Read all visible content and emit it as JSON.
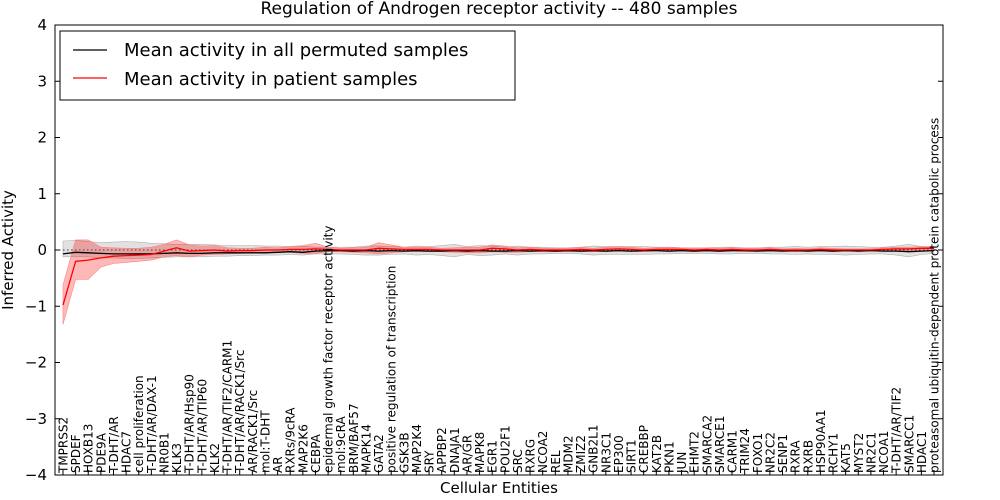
{
  "chart_data": {
    "type": "line",
    "title": "Regulation of Androgen receptor activity -- 480 samples",
    "xlabel": "Cellular Entities",
    "ylabel": "Inferred Activity",
    "ylim": [
      -4,
      4
    ],
    "yticks": [
      -4,
      -3,
      -2,
      -1,
      0,
      1,
      2,
      3,
      4
    ],
    "ytick_labels": [
      "−4",
      "−3",
      "−2",
      "−1",
      "0",
      "1",
      "2",
      "3",
      "4"
    ],
    "legend": {
      "position": "top-left",
      "entries": [
        {
          "label": "Mean activity in all permuted samples",
          "color": "#000000"
        },
        {
          "label": "Mean activity in patient samples",
          "color": "#ff0000"
        }
      ]
    },
    "categories": [
      "TMPRSS2",
      "SPDEF",
      "HOXB13",
      "PDE9A",
      "T-DHT/AR",
      "HDAC7",
      "cell proliferation",
      "T-DHT/AR/DAX-1",
      "NR0B1",
      "KLK3",
      "T-DHT/AR/Hsp90",
      "T-DHT/AR/TIP60",
      "KLK2",
      "T-DHT/AR/TIF2/CARM1",
      "T-DHT/AR/RACK1/Src",
      "AR/RACK1/Src",
      "mol:T-DHT",
      "AR",
      "RXRs/9cRA",
      "MAP2K6",
      "CEBPA",
      "epidermal growth factor receptor activity",
      "mol:9cRA",
      "BRM/BAF57",
      "MAPK14",
      "GATA2",
      "positive regulation of transcription",
      "GSK3B",
      "MAP2K4",
      "SRY",
      "APPBP2",
      "DNAJA1",
      "AR/GR",
      "MAPK8",
      "EGR1",
      "POU2F1",
      "SRC",
      "RXRG",
      "NCOA2",
      "REL",
      "MDM2",
      "ZMIZ2",
      "GNB2L1",
      "NR3C1",
      "EP300",
      "SIRT1",
      "CREBBP",
      "KAT2B",
      "PKN1",
      "JUN",
      "EHMT2",
      "SMARCA2",
      "SMARCE1",
      "CARM1",
      "TRIM24",
      "FOXO1",
      "NR2C2",
      "SENP1",
      "RXRA",
      "RXRB",
      "HSP90AA1",
      "RCHY1",
      "KAT5",
      "MYST2",
      "NR2C1",
      "NCOA1",
      "T-DHT/AR/TIF2",
      "SMARCC1",
      "HDAC1",
      "proteasomal ubiquitin-dependent protein catabolic process"
    ],
    "series": [
      {
        "name": "Mean activity in all permuted samples",
        "color": "#000000",
        "values": [
          -0.07,
          -0.04,
          -0.05,
          -0.06,
          -0.07,
          -0.07,
          -0.07,
          -0.07,
          -0.06,
          -0.05,
          -0.06,
          -0.06,
          -0.05,
          -0.05,
          -0.05,
          -0.05,
          -0.05,
          -0.04,
          -0.03,
          -0.04,
          -0.02,
          -0.01,
          -0.01,
          -0.02,
          -0.01,
          -0.02,
          -0.01,
          -0.02,
          -0.01,
          -0.02,
          -0.02,
          -0.01,
          -0.02,
          -0.01,
          -0.02,
          -0.02,
          -0.01,
          -0.02,
          -0.01,
          -0.02,
          -0.01,
          -0.02,
          -0.01,
          -0.02,
          -0.01,
          -0.02,
          -0.01,
          -0.01,
          -0.02,
          -0.01,
          -0.02,
          -0.01,
          -0.02,
          -0.01,
          -0.01,
          -0.02,
          -0.01,
          -0.02,
          -0.01,
          -0.02,
          -0.01,
          -0.02,
          -0.01,
          -0.02,
          -0.01,
          -0.02,
          -0.02,
          -0.03,
          -0.02,
          -0.01
        ],
        "band_low": [
          -0.12,
          -0.12,
          -0.12,
          -0.14,
          -0.14,
          -0.15,
          -0.15,
          -0.14,
          -0.13,
          -0.12,
          -0.12,
          -0.12,
          -0.11,
          -0.11,
          -0.1,
          -0.1,
          -0.09,
          -0.09,
          -0.08,
          -0.09,
          -0.07,
          -0.07,
          -0.07,
          -0.08,
          -0.09,
          -0.09,
          -0.08,
          -0.07,
          -0.09,
          -0.08,
          -0.1,
          -0.12,
          -0.08,
          -0.1,
          -0.09,
          -0.07,
          -0.09,
          -0.07,
          -0.07,
          -0.06,
          -0.06,
          -0.07,
          -0.09,
          -0.08,
          -0.08,
          -0.08,
          -0.08,
          -0.07,
          -0.07,
          -0.06,
          -0.06,
          -0.06,
          -0.07,
          -0.07,
          -0.06,
          -0.06,
          -0.07,
          -0.07,
          -0.08,
          -0.07,
          -0.08,
          -0.08,
          -0.09,
          -0.08,
          -0.07,
          -0.07,
          -0.09,
          -0.12,
          -0.08,
          -0.06
        ],
        "band_high": [
          0.16,
          0.17,
          0.15,
          0.13,
          0.14,
          0.15,
          0.14,
          0.12,
          0.11,
          0.1,
          0.1,
          0.1,
          0.09,
          0.08,
          0.08,
          0.08,
          0.07,
          0.07,
          0.06,
          0.07,
          0.05,
          0.05,
          0.05,
          0.05,
          0.07,
          0.07,
          0.06,
          0.05,
          0.07,
          0.06,
          0.08,
          0.1,
          0.06,
          0.08,
          0.07,
          0.05,
          0.07,
          0.05,
          0.05,
          0.04,
          0.04,
          0.05,
          0.07,
          0.06,
          0.06,
          0.06,
          0.06,
          0.05,
          0.05,
          0.04,
          0.04,
          0.04,
          0.05,
          0.05,
          0.04,
          0.04,
          0.05,
          0.05,
          0.06,
          0.05,
          0.06,
          0.06,
          0.07,
          0.06,
          0.05,
          0.05,
          0.07,
          0.1,
          0.06,
          0.04
        ]
      },
      {
        "name": "Mean activity in patient samples",
        "color": "#ff0000",
        "values": [
          -0.98,
          -0.2,
          -0.18,
          -0.14,
          -0.11,
          -0.1,
          -0.09,
          -0.08,
          -0.02,
          0.04,
          -0.02,
          -0.01,
          0.0,
          -0.02,
          -0.01,
          -0.01,
          0.0,
          0.0,
          0.01,
          0.01,
          0.02,
          0.01,
          0.0,
          0.0,
          0.0,
          0.03,
          0.02,
          0.01,
          0.01,
          0.01,
          0.0,
          0.0,
          0.0,
          0.0,
          0.03,
          0.02,
          0.0,
          0.01,
          0.0,
          0.0,
          0.0,
          0.01,
          0.0,
          0.01,
          0.02,
          0.01,
          0.0,
          0.01,
          0.01,
          0.01,
          0.0,
          0.01,
          0.0,
          0.01,
          0.0,
          0.0,
          0.01,
          0.0,
          0.0,
          0.0,
          0.01,
          0.0,
          0.0,
          0.0,
          0.0,
          0.01,
          0.02,
          0.02,
          0.03,
          0.03
        ],
        "band_low": [
          -1.32,
          -0.52,
          -0.52,
          -0.3,
          -0.24,
          -0.22,
          -0.2,
          -0.18,
          -0.12,
          -0.1,
          -0.12,
          -0.09,
          -0.08,
          -0.07,
          -0.06,
          -0.05,
          -0.05,
          -0.04,
          -0.04,
          -0.06,
          -0.06,
          -0.03,
          -0.03,
          -0.04,
          -0.05,
          -0.07,
          -0.05,
          -0.03,
          -0.03,
          -0.03,
          -0.03,
          -0.04,
          -0.05,
          -0.05,
          -0.03,
          -0.04,
          -0.04,
          -0.03,
          -0.03,
          -0.03,
          -0.03,
          -0.03,
          -0.03,
          -0.03,
          -0.02,
          -0.03,
          -0.03,
          -0.02,
          -0.03,
          -0.02,
          -0.03,
          -0.02,
          -0.03,
          -0.02,
          -0.03,
          -0.02,
          -0.02,
          -0.02,
          -0.03,
          -0.02,
          -0.02,
          -0.03,
          -0.02,
          -0.02,
          -0.02,
          -0.02,
          -0.01,
          -0.01,
          0.0,
          0.0
        ],
        "band_high": [
          -0.62,
          0.18,
          0.18,
          0.05,
          0.04,
          0.03,
          0.03,
          0.05,
          0.1,
          0.18,
          0.09,
          0.07,
          0.08,
          0.04,
          0.03,
          0.03,
          0.05,
          0.04,
          0.06,
          0.08,
          0.12,
          0.05,
          0.03,
          0.04,
          0.05,
          0.13,
          0.09,
          0.05,
          0.05,
          0.05,
          0.03,
          0.04,
          0.05,
          0.05,
          0.09,
          0.07,
          0.04,
          0.05,
          0.03,
          0.03,
          0.03,
          0.05,
          0.03,
          0.05,
          0.06,
          0.05,
          0.03,
          0.04,
          0.05,
          0.04,
          0.03,
          0.04,
          0.03,
          0.04,
          0.03,
          0.03,
          0.04,
          0.02,
          0.03,
          0.02,
          0.04,
          0.03,
          0.02,
          0.02,
          0.02,
          0.04,
          0.05,
          0.05,
          0.06,
          0.06
        ]
      }
    ],
    "reference_line": {
      "y": 0,
      "style": "dotted"
    }
  }
}
